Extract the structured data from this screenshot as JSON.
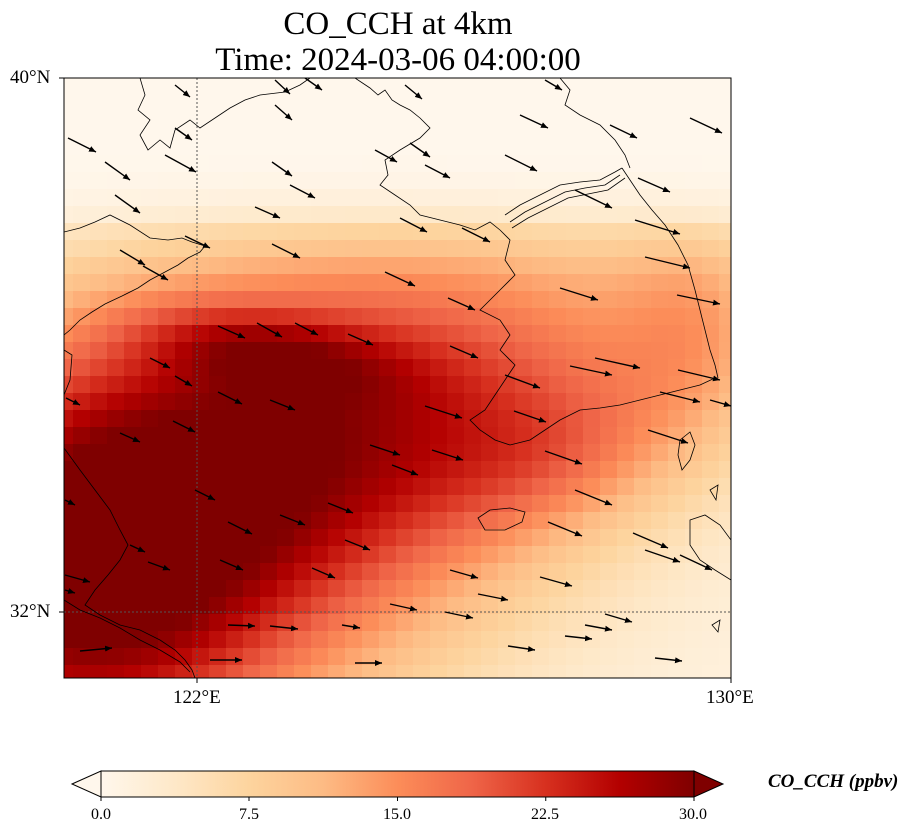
{
  "title_line1": "CO_CCH at 4km",
  "title_line2": "Time: 2024-03-06 04:00:00",
  "lat_labels": [
    "40°N",
    "32°N"
  ],
  "lon_labels": [
    "122°E",
    "130°E"
  ],
  "colorbar": {
    "label": "CO_CCH (ppbv)",
    "ticks": [
      "0.0",
      "7.5",
      "15.0",
      "22.5",
      "30.0"
    ],
    "min": 0,
    "max": 30,
    "colormap": [
      "#fff7ec",
      "#fee8c8",
      "#fdd49e",
      "#fdbb84",
      "#fc8d59",
      "#ef6548",
      "#d7301f",
      "#b30000",
      "#7f0000"
    ]
  },
  "map": {
    "lon_range": [
      120,
      130
    ],
    "lat_range": [
      31,
      40
    ],
    "gridlines": {
      "lon": [
        122,
        130
      ],
      "lat": [
        32,
        40
      ]
    }
  }
}
